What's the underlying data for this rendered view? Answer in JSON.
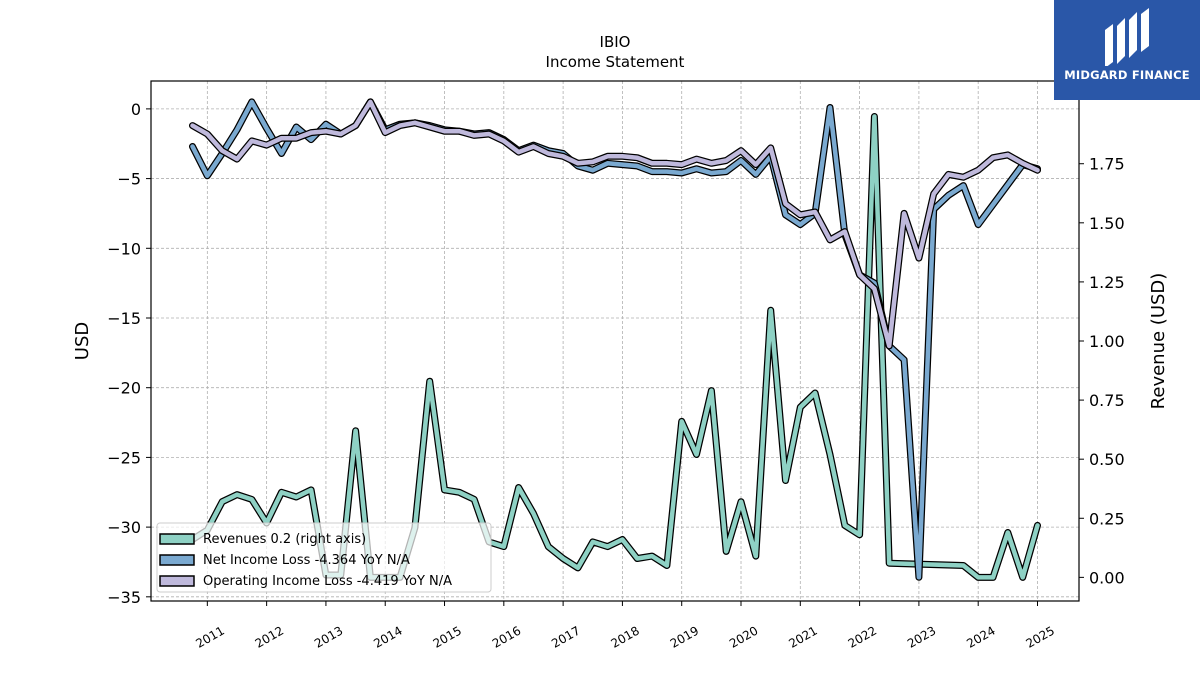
{
  "logo": {
    "text": "MIDGARD FINANCE"
  },
  "chart_data": {
    "type": "line",
    "title": "IBIO",
    "subtitle": "Income Statement",
    "ylabel": "USD",
    "ylabel_right": "Revenue (USD)",
    "ylim": [
      -35.3,
      2
    ],
    "ylim_right": [
      -0.1,
      2.1
    ],
    "xlim": [
      2010.05,
      2025.7
    ],
    "y_ticks": [
      0,
      -5,
      -10,
      -15,
      -20,
      -25,
      -30,
      -35
    ],
    "y_ticks_right": [
      0.0,
      0.25,
      0.5,
      0.75,
      1.0,
      1.25,
      1.5,
      1.75
    ],
    "x_ticks": [
      "2011",
      "2012",
      "2013",
      "2014",
      "2015",
      "2016",
      "2017",
      "2018",
      "2019",
      "2020",
      "2021",
      "2022",
      "2023",
      "2024",
      "2025"
    ],
    "grid": true,
    "legend_position": "bottom-left",
    "colors": {
      "revenue": "#8ed1c4",
      "net_income": "#7aa9d0",
      "operating_income": "#bfb9dc"
    },
    "series": [
      {
        "name": "Revenues  0.2 (right axis)",
        "axis": "right",
        "color": "#8ed1c4",
        "points": [
          [
            2010.75,
            0.16
          ],
          [
            2011.0,
            0.2
          ],
          [
            2011.25,
            0.32
          ],
          [
            2011.5,
            0.35
          ],
          [
            2011.75,
            0.33
          ],
          [
            2012.0,
            0.23
          ],
          [
            2012.25,
            0.36
          ],
          [
            2012.5,
            0.34
          ],
          [
            2012.75,
            0.37
          ],
          [
            2013.0,
            0.01
          ],
          [
            2013.25,
            0.01
          ],
          [
            2013.5,
            0.62
          ],
          [
            2013.75,
            0.0
          ],
          [
            2014.0,
            0.0
          ],
          [
            2014.25,
            0.0
          ],
          [
            2014.5,
            0.21
          ],
          [
            2014.75,
            0.83
          ],
          [
            2015.0,
            0.37
          ],
          [
            2015.25,
            0.36
          ],
          [
            2015.5,
            0.33
          ],
          [
            2015.75,
            0.15
          ],
          [
            2016.0,
            0.13
          ],
          [
            2016.25,
            0.38
          ],
          [
            2016.5,
            0.27
          ],
          [
            2016.75,
            0.13
          ],
          [
            2017.0,
            0.08
          ],
          [
            2017.25,
            0.04
          ],
          [
            2017.5,
            0.15
          ],
          [
            2017.75,
            0.13
          ],
          [
            2018.0,
            0.16
          ],
          [
            2018.25,
            0.08
          ],
          [
            2018.5,
            0.09
          ],
          [
            2018.75,
            0.05
          ],
          [
            2019.0,
            0.66
          ],
          [
            2019.25,
            0.52
          ],
          [
            2019.5,
            0.79
          ],
          [
            2019.75,
            0.11
          ],
          [
            2020.0,
            0.32
          ],
          [
            2020.25,
            0.09
          ],
          [
            2020.5,
            1.13
          ],
          [
            2020.75,
            0.41
          ],
          [
            2021.0,
            0.72
          ],
          [
            2021.25,
            0.78
          ],
          [
            2021.5,
            0.52
          ],
          [
            2021.75,
            0.22
          ],
          [
            2022.0,
            0.18
          ],
          [
            2022.25,
            1.95
          ],
          [
            2022.5,
            0.06
          ],
          [
            2023.75,
            0.05
          ],
          [
            2024.0,
            0.0
          ],
          [
            2024.25,
            0.0
          ],
          [
            2024.5,
            0.19
          ],
          [
            2024.75,
            0.0
          ],
          [
            2025.0,
            0.22
          ]
        ]
      },
      {
        "name": "Net Income Loss  -4.364 YoY N/A",
        "axis": "left",
        "color": "#7aa9d0",
        "points": [
          [
            2010.75,
            -2.7
          ],
          [
            2011.0,
            -4.8
          ],
          [
            2011.25,
            -3.2
          ],
          [
            2011.5,
            -1.5
          ],
          [
            2011.75,
            0.5
          ],
          [
            2012.0,
            -1.4
          ],
          [
            2012.25,
            -3.2
          ],
          [
            2012.5,
            -1.3
          ],
          [
            2012.75,
            -2.2
          ],
          [
            2013.0,
            -1.1
          ],
          [
            2013.25,
            -1.8
          ],
          [
            2013.5,
            -1.2
          ],
          [
            2013.75,
            0.5
          ],
          [
            2014.0,
            -1.5
          ],
          [
            2014.25,
            -1.1
          ],
          [
            2014.5,
            -1.0
          ],
          [
            2014.75,
            -1.2
          ],
          [
            2015.0,
            -1.5
          ],
          [
            2015.25,
            -1.6
          ],
          [
            2015.5,
            -1.8
          ],
          [
            2015.75,
            -1.7
          ],
          [
            2016.0,
            -2.2
          ],
          [
            2016.25,
            -3.0
          ],
          [
            2016.5,
            -2.6
          ],
          [
            2016.75,
            -3.0
          ],
          [
            2017.0,
            -3.2
          ],
          [
            2017.25,
            -4.1
          ],
          [
            2017.5,
            -4.4
          ],
          [
            2017.75,
            -3.9
          ],
          [
            2018.0,
            -4.0
          ],
          [
            2018.25,
            -4.1
          ],
          [
            2018.5,
            -4.5
          ],
          [
            2018.75,
            -4.5
          ],
          [
            2019.0,
            -4.6
          ],
          [
            2019.25,
            -4.3
          ],
          [
            2019.5,
            -4.6
          ],
          [
            2019.75,
            -4.5
          ],
          [
            2020.0,
            -3.7
          ],
          [
            2020.25,
            -4.7
          ],
          [
            2020.5,
            -3.4
          ],
          [
            2020.75,
            -7.6
          ],
          [
            2021.0,
            -8.3
          ],
          [
            2021.25,
            -7.5
          ],
          [
            2021.5,
            0.1
          ],
          [
            2021.75,
            -9.0
          ],
          [
            2022.0,
            -11.9
          ],
          [
            2022.25,
            -12.5
          ],
          [
            2022.5,
            -17.0
          ],
          [
            2022.75,
            -18.0
          ],
          [
            2023.0,
            -33.6
          ],
          [
            2023.25,
            -7.2
          ],
          [
            2023.5,
            -6.2
          ],
          [
            2023.75,
            -5.5
          ],
          [
            2024.0,
            -8.3
          ],
          [
            2024.75,
            -4.0
          ],
          [
            2025.0,
            -4.3
          ]
        ]
      },
      {
        "name": "Operating Income Loss  -4.419 YoY N/A",
        "axis": "left",
        "color": "#bfb9dc",
        "points": [
          [
            2010.75,
            -1.2
          ],
          [
            2011.0,
            -1.8
          ],
          [
            2011.25,
            -3.0
          ],
          [
            2011.5,
            -3.6
          ],
          [
            2011.75,
            -2.3
          ],
          [
            2012.0,
            -2.6
          ],
          [
            2012.25,
            -2.1
          ],
          [
            2012.5,
            -2.1
          ],
          [
            2012.75,
            -1.7
          ],
          [
            2013.0,
            -1.6
          ],
          [
            2013.25,
            -1.8
          ],
          [
            2013.5,
            -1.2
          ],
          [
            2013.75,
            0.5
          ],
          [
            2014.0,
            -1.7
          ],
          [
            2014.25,
            -1.2
          ],
          [
            2014.5,
            -1.0
          ],
          [
            2014.75,
            -1.3
          ],
          [
            2015.0,
            -1.6
          ],
          [
            2015.25,
            -1.6
          ],
          [
            2015.5,
            -1.9
          ],
          [
            2015.75,
            -1.8
          ],
          [
            2016.0,
            -2.3
          ],
          [
            2016.25,
            -3.1
          ],
          [
            2016.5,
            -2.7
          ],
          [
            2016.75,
            -3.2
          ],
          [
            2017.0,
            -3.4
          ],
          [
            2017.25,
            -3.9
          ],
          [
            2017.5,
            -3.8
          ],
          [
            2017.75,
            -3.4
          ],
          [
            2018.0,
            -3.4
          ],
          [
            2018.25,
            -3.5
          ],
          [
            2018.5,
            -3.9
          ],
          [
            2018.75,
            -3.9
          ],
          [
            2019.0,
            -4.0
          ],
          [
            2019.25,
            -3.6
          ],
          [
            2019.5,
            -3.9
          ],
          [
            2019.75,
            -3.7
          ],
          [
            2020.0,
            -3.0
          ],
          [
            2020.25,
            -4.0
          ],
          [
            2020.5,
            -2.8
          ],
          [
            2020.75,
            -6.8
          ],
          [
            2021.0,
            -7.6
          ],
          [
            2021.25,
            -7.4
          ],
          [
            2021.5,
            -9.4
          ],
          [
            2021.75,
            -8.8
          ],
          [
            2022.0,
            -11.9
          ],
          [
            2022.25,
            -12.9
          ],
          [
            2022.5,
            -17.0
          ],
          [
            2022.75,
            -7.5
          ],
          [
            2023.0,
            -10.7
          ],
          [
            2023.25,
            -6.1
          ],
          [
            2023.5,
            -4.7
          ],
          [
            2023.75,
            -4.9
          ],
          [
            2024.0,
            -4.4
          ],
          [
            2024.25,
            -3.5
          ],
          [
            2024.5,
            -3.3
          ],
          [
            2024.75,
            -3.9
          ],
          [
            2025.0,
            -4.4
          ]
        ]
      }
    ]
  }
}
